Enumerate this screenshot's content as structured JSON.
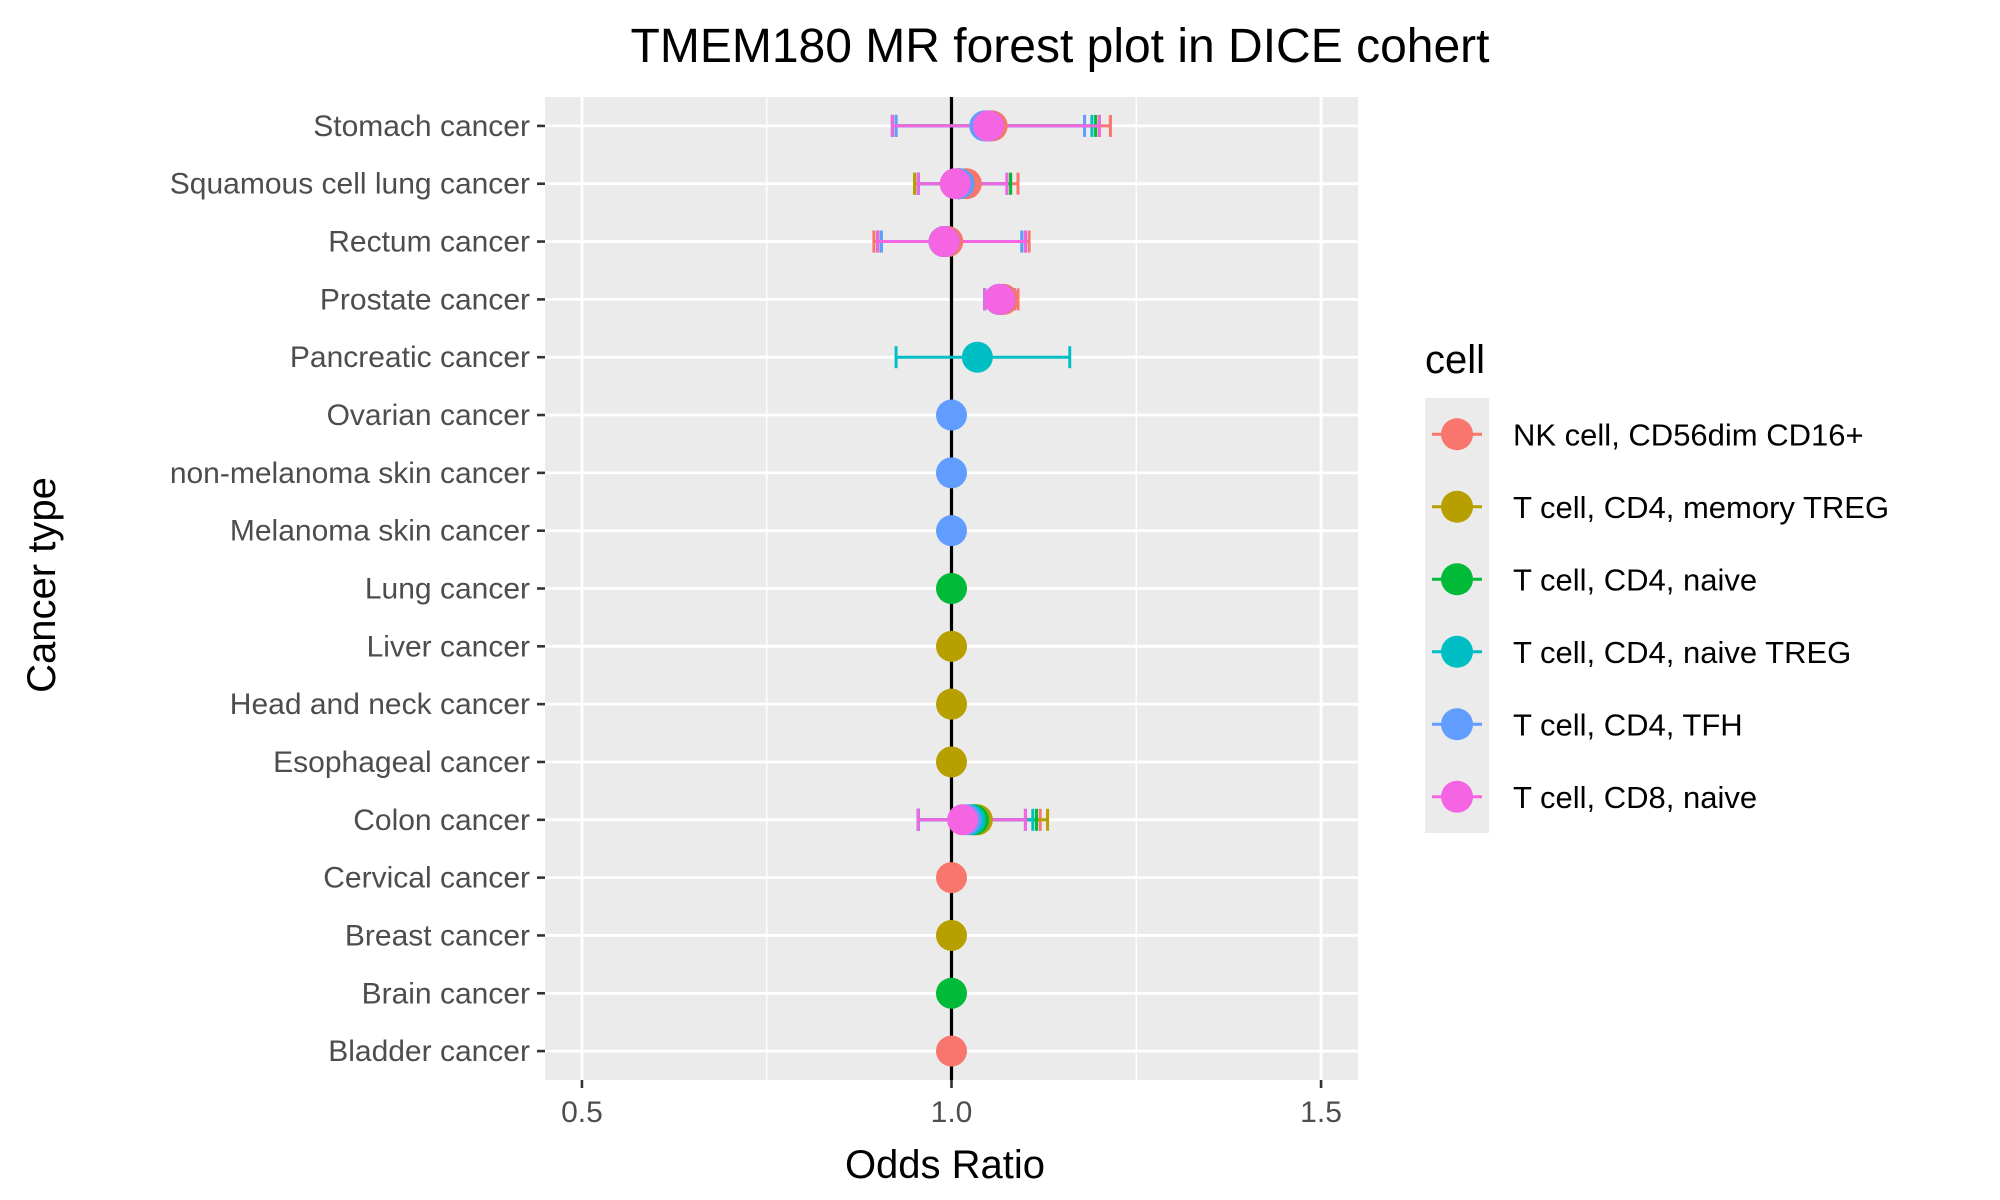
{
  "chart_data": {
    "type": "forest",
    "title": "TMEM180 MR forest plot in DICE cohert",
    "xlabel": "Odds Ratio",
    "ylabel": "Cancer type",
    "xlim": [
      0.45,
      1.55
    ],
    "x_ticks": [
      0.5,
      1.0,
      1.5
    ],
    "x_tick_labels": [
      "0.5",
      "1.0",
      "1.5"
    ],
    "reference_line": 1.0,
    "grid": true,
    "legend_position": "right",
    "legend_title": "cell",
    "categories": [
      "Stomach cancer",
      "Squamous cell lung cancer",
      "Rectum cancer",
      "Prostate cancer",
      "Pancreatic cancer",
      "Ovarian cancer",
      "non-melanoma skin cancer",
      "Melanoma skin cancer",
      "Lung cancer",
      "Liver cancer",
      "Head and neck cancer",
      "Esophageal cancer",
      "Colon cancer",
      "Cervical cancer",
      "Breast cancer",
      "Brain cancer",
      "Bladder cancer"
    ],
    "series": [
      {
        "name": "NK cell, CD56dim CD16+",
        "color": "#F8766D",
        "points": [
          {
            "category": "Stomach cancer",
            "or": 1.055,
            "lower": 0.92,
            "upper": 1.215
          },
          {
            "category": "Squamous cell lung cancer",
            "or": 1.02,
            "lower": 0.95,
            "upper": 1.09
          },
          {
            "category": "Rectum cancer",
            "or": 0.995,
            "lower": 0.895,
            "upper": 1.105
          },
          {
            "category": "Prostate cancer",
            "or": 1.07,
            "lower": 1.045,
            "upper": 1.09
          },
          {
            "category": "Colon cancer",
            "or": 1.03,
            "lower": 0.955,
            "upper": 1.12
          },
          {
            "category": "Cervical cancer",
            "or": 1.0,
            "lower": 1.0,
            "upper": 1.0
          },
          {
            "category": "Bladder cancer",
            "or": 1.0,
            "lower": 1.0,
            "upper": 1.0
          }
        ]
      },
      {
        "name": "T cell, CD4, memory TREG",
        "color": "#B79F00",
        "points": [
          {
            "category": "Stomach cancer",
            "or": 1.05,
            "lower": 0.92,
            "upper": 1.2
          },
          {
            "category": "Squamous cell lung cancer",
            "or": 1.01,
            "lower": 0.95,
            "upper": 1.08
          },
          {
            "category": "Rectum cancer",
            "or": 0.99,
            "lower": 0.9,
            "upper": 1.1
          },
          {
            "category": "Prostate cancer",
            "or": 1.065,
            "lower": 1.045,
            "upper": 1.085
          },
          {
            "category": "Colon cancer",
            "or": 1.035,
            "lower": 0.955,
            "upper": 1.13
          },
          {
            "category": "Liver cancer",
            "or": 1.0,
            "lower": 1.0,
            "upper": 1.0
          },
          {
            "category": "Head and neck cancer",
            "or": 1.0,
            "lower": 1.0,
            "upper": 1.0
          },
          {
            "category": "Esophageal cancer",
            "or": 1.0,
            "lower": 1.0,
            "upper": 1.0
          },
          {
            "category": "Breast cancer",
            "or": 1.0,
            "lower": 1.0,
            "upper": 1.0
          }
        ]
      },
      {
        "name": "T cell, CD4, naive",
        "color": "#00BA38",
        "points": [
          {
            "category": "Stomach cancer",
            "or": 1.05,
            "lower": 0.925,
            "upper": 1.195
          },
          {
            "category": "Squamous cell lung cancer",
            "or": 1.01,
            "lower": 0.955,
            "upper": 1.08
          },
          {
            "category": "Rectum cancer",
            "or": 0.99,
            "lower": 0.9,
            "upper": 1.1
          },
          {
            "category": "Prostate cancer",
            "or": 1.065,
            "lower": 1.045,
            "upper": 1.085
          },
          {
            "category": "Colon cancer",
            "or": 1.03,
            "lower": 0.955,
            "upper": 1.115
          },
          {
            "category": "Lung cancer",
            "or": 1.0,
            "lower": 1.0,
            "upper": 1.0
          },
          {
            "category": "Brain cancer",
            "or": 1.0,
            "lower": 1.0,
            "upper": 1.0
          }
        ]
      },
      {
        "name": "T cell, CD4, naive TREG",
        "color": "#00BFC4",
        "points": [
          {
            "category": "Stomach cancer",
            "or": 1.05,
            "lower": 0.92,
            "upper": 1.19
          },
          {
            "category": "Squamous cell lung cancer",
            "or": 1.01,
            "lower": 0.955,
            "upper": 1.075
          },
          {
            "category": "Rectum cancer",
            "or": 0.99,
            "lower": 0.905,
            "upper": 1.1
          },
          {
            "category": "Prostate cancer",
            "or": 1.065,
            "lower": 1.045,
            "upper": 1.085
          },
          {
            "category": "Pancreatic cancer",
            "or": 1.035,
            "lower": 0.925,
            "upper": 1.16
          },
          {
            "category": "Colon cancer",
            "or": 1.025,
            "lower": 0.955,
            "upper": 1.11
          }
        ]
      },
      {
        "name": "T cell, CD4, TFH",
        "color": "#619CFF",
        "points": [
          {
            "category": "Stomach cancer",
            "or": 1.045,
            "lower": 0.925,
            "upper": 1.18
          },
          {
            "category": "Squamous cell lung cancer",
            "or": 1.01,
            "lower": 0.955,
            "upper": 1.075
          },
          {
            "category": "Rectum cancer",
            "or": 0.99,
            "lower": 0.905,
            "upper": 1.095
          },
          {
            "category": "Prostate cancer",
            "or": 1.065,
            "lower": 1.045,
            "upper": 1.085
          },
          {
            "category": "Ovarian cancer",
            "or": 1.0,
            "lower": 1.0,
            "upper": 1.0
          },
          {
            "category": "non-melanoma skin cancer",
            "or": 1.0,
            "lower": 1.0,
            "upper": 1.0
          },
          {
            "category": "Melanoma skin cancer",
            "or": 1.0,
            "lower": 1.0,
            "upper": 1.0
          },
          {
            "category": "Colon cancer",
            "or": 1.02,
            "lower": 0.955,
            "upper": 1.1
          }
        ]
      },
      {
        "name": "T cell, CD8, naive",
        "color": "#F564E3",
        "points": [
          {
            "category": "Stomach cancer",
            "or": 1.05,
            "lower": 0.92,
            "upper": 1.2
          },
          {
            "category": "Squamous cell lung cancer",
            "or": 1.005,
            "lower": 0.955,
            "upper": 1.075
          },
          {
            "category": "Rectum cancer",
            "or": 0.99,
            "lower": 0.9,
            "upper": 1.1
          },
          {
            "category": "Prostate cancer",
            "or": 1.065,
            "lower": 1.045,
            "upper": 1.085
          },
          {
            "category": "Colon cancer",
            "or": 1.015,
            "lower": 0.955,
            "upper": 1.1
          }
        ]
      }
    ]
  }
}
